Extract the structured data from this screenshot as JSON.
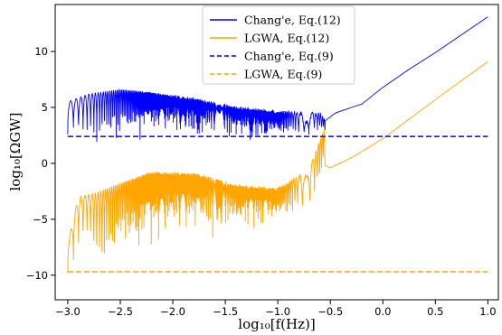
{
  "chart_data": {
    "type": "line",
    "title": "",
    "xlabel": "log₁₀[f(Hz)]",
    "ylabel": "log₁₀[ΩGW]",
    "xlim": [
      -3.12,
      1.1
    ],
    "ylim": [
      -12.2,
      14.2
    ],
    "xticks": [
      -3.0,
      -2.5,
      -2.0,
      -1.5,
      -1.0,
      -0.5,
      0.0,
      0.5,
      1.0
    ],
    "xtick_labels": [
      "−3.0",
      "−2.5",
      "−2.0",
      "−1.5",
      "−1.0",
      "−0.5",
      "0.0",
      "0.5",
      "1.0"
    ],
    "yticks": [
      -10,
      -5,
      0,
      5,
      10
    ],
    "ytick_labels": [
      "−10",
      "−5",
      "0",
      "5",
      "10"
    ],
    "grid": false,
    "legend_position": "top-center",
    "series": [
      {
        "name": "Chang'e, Eq.(12)",
        "color": "#0000ff",
        "style": "solid",
        "envelope": [
          [
            -3.0,
            5.5
          ],
          [
            -2.8,
            6.2
          ],
          [
            -2.5,
            6.6
          ],
          [
            -2.2,
            6.3
          ],
          [
            -1.8,
            5.8
          ],
          [
            -1.4,
            5.0
          ],
          [
            -1.0,
            4.6
          ],
          [
            -0.6,
            4.4
          ],
          [
            -0.55,
            3.8
          ]
        ],
        "troughs": [
          [
            -3.0,
            2.6
          ],
          [
            -2.7,
            1.5
          ],
          [
            -2.4,
            2.0
          ],
          [
            -2.0,
            2.0
          ],
          [
            -1.6,
            1.9
          ],
          [
            -1.2,
            1.9
          ],
          [
            -0.8,
            2.2
          ],
          [
            -0.55,
            2.5
          ]
        ],
        "smooth": [
          [
            -0.55,
            3.8
          ],
          [
            -0.45,
            4.5
          ],
          [
            -0.3,
            5.0
          ],
          [
            -0.2,
            5.3
          ],
          [
            0.0,
            6.8
          ],
          [
            0.25,
            8.4
          ],
          [
            0.5,
            9.9
          ],
          [
            0.75,
            11.5
          ],
          [
            1.0,
            13.1
          ]
        ]
      },
      {
        "name": "LGWA, Eq.(12)",
        "color": "#ffa500",
        "style": "solid",
        "envelope": [
          [
            -3.0,
            -7.2
          ],
          [
            -2.9,
            -3.0
          ],
          [
            -2.75,
            -2.7
          ],
          [
            -2.5,
            -1.8
          ],
          [
            -2.2,
            -0.8
          ],
          [
            -1.8,
            -0.9
          ],
          [
            -1.4,
            -2.0
          ],
          [
            -1.0,
            -2.3
          ],
          [
            -0.7,
            -0.5
          ],
          [
            -0.56,
            3.0
          ]
        ],
        "troughs": [
          [
            -2.98,
            -9.8
          ],
          [
            -2.8,
            -7.0
          ],
          [
            -2.72,
            -11.0
          ],
          [
            -2.5,
            -8.2
          ],
          [
            -2.2,
            -8.0
          ],
          [
            -1.8,
            -7.0
          ],
          [
            -1.4,
            -6.2
          ],
          [
            -1.0,
            -5.6
          ],
          [
            -0.7,
            -4.6
          ],
          [
            -0.56,
            -2.0
          ]
        ],
        "smooth": [
          [
            -0.56,
            3.0
          ],
          [
            -0.55,
            -0.2
          ],
          [
            -0.5,
            -0.4
          ],
          [
            -0.3,
            0.5
          ],
          [
            0.0,
            2.2
          ],
          [
            0.5,
            5.7
          ],
          [
            1.0,
            9.1
          ]
        ]
      },
      {
        "name": "Chang'e, Eq.(9)",
        "color": "#0000ff",
        "style": "dashed",
        "y": 2.4
      },
      {
        "name": "LGWA, Eq.(9)",
        "color": "#ffa500",
        "style": "dashed",
        "y": -9.7
      }
    ]
  }
}
